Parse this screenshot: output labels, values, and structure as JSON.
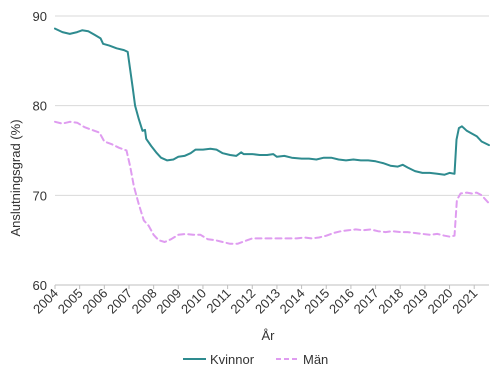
{
  "chart_data": {
    "type": "line",
    "xlabel": "År",
    "ylabel": "Anslutningsgrad (%)",
    "xlim": [
      2004,
      2021.6
    ],
    "ylim": [
      60,
      90
    ],
    "y_ticks": [
      60,
      70,
      80,
      90
    ],
    "x_ticks": [
      2004,
      2005,
      2006,
      2007,
      2008,
      2009,
      2010,
      2011,
      2012,
      2013,
      2014,
      2015,
      2016,
      2017,
      2018,
      2019,
      2020,
      2021
    ],
    "x_tick_labels": [
      "2004",
      "2005",
      "2006",
      "2007",
      "2008",
      "2009",
      "2010",
      "2011",
      "2012",
      "2013",
      "2014",
      "2015",
      "2016",
      "2017",
      "2018",
      "2019",
      "2020",
      "2021"
    ],
    "grid": "horizontal",
    "legend_position": "bottom",
    "series": [
      {
        "name": "Kvinnor",
        "color": "#2e8b8f",
        "style": "solid",
        "points": [
          [
            2004.0,
            88.6
          ],
          [
            2004.3,
            88.2
          ],
          [
            2004.6,
            88.0
          ],
          [
            2004.9,
            88.2
          ],
          [
            2005.1,
            88.4
          ],
          [
            2005.35,
            88.3
          ],
          [
            2005.6,
            87.9
          ],
          [
            2005.85,
            87.5
          ],
          [
            2005.95,
            86.9
          ],
          [
            2006.2,
            86.7
          ],
          [
            2006.5,
            86.4
          ],
          [
            2006.8,
            86.2
          ],
          [
            2006.95,
            86.0
          ],
          [
            2007.05,
            84.0
          ],
          [
            2007.15,
            82.0
          ],
          [
            2007.25,
            80.0
          ],
          [
            2007.4,
            78.5
          ],
          [
            2007.55,
            77.2
          ],
          [
            2007.65,
            77.3
          ],
          [
            2007.7,
            76.3
          ],
          [
            2007.9,
            75.5
          ],
          [
            2008.1,
            74.8
          ],
          [
            2008.3,
            74.2
          ],
          [
            2008.55,
            73.9
          ],
          [
            2008.8,
            74.0
          ],
          [
            2009.0,
            74.3
          ],
          [
            2009.25,
            74.4
          ],
          [
            2009.5,
            74.7
          ],
          [
            2009.7,
            75.1
          ],
          [
            2010.0,
            75.1
          ],
          [
            2010.3,
            75.2
          ],
          [
            2010.55,
            75.1
          ],
          [
            2010.8,
            74.7
          ],
          [
            2011.1,
            74.5
          ],
          [
            2011.35,
            74.4
          ],
          [
            2011.55,
            74.8
          ],
          [
            2011.65,
            74.6
          ],
          [
            2012.0,
            74.6
          ],
          [
            2012.3,
            74.5
          ],
          [
            2012.6,
            74.5
          ],
          [
            2012.85,
            74.6
          ],
          [
            2013.0,
            74.3
          ],
          [
            2013.3,
            74.4
          ],
          [
            2013.6,
            74.2
          ],
          [
            2014.0,
            74.1
          ],
          [
            2014.3,
            74.1
          ],
          [
            2014.6,
            74.0
          ],
          [
            2014.9,
            74.2
          ],
          [
            2015.2,
            74.2
          ],
          [
            2015.5,
            74.0
          ],
          [
            2015.8,
            73.9
          ],
          [
            2016.1,
            74.0
          ],
          [
            2016.4,
            73.9
          ],
          [
            2016.7,
            73.9
          ],
          [
            2017.0,
            73.8
          ],
          [
            2017.3,
            73.6
          ],
          [
            2017.6,
            73.3
          ],
          [
            2017.9,
            73.2
          ],
          [
            2018.1,
            73.4
          ],
          [
            2018.3,
            73.1
          ],
          [
            2018.6,
            72.7
          ],
          [
            2018.9,
            72.5
          ],
          [
            2019.2,
            72.5
          ],
          [
            2019.5,
            72.4
          ],
          [
            2019.8,
            72.3
          ],
          [
            2020.0,
            72.5
          ],
          [
            2020.2,
            72.4
          ],
          [
            2020.28,
            76.2
          ],
          [
            2020.38,
            77.5
          ],
          [
            2020.5,
            77.7
          ],
          [
            2020.7,
            77.2
          ],
          [
            2020.9,
            76.9
          ],
          [
            2021.1,
            76.6
          ],
          [
            2021.3,
            76.0
          ],
          [
            2021.6,
            75.6
          ]
        ]
      },
      {
        "name": "Män",
        "color": "#df9cf0",
        "style": "dashed",
        "points": [
          [
            2004.0,
            78.2
          ],
          [
            2004.3,
            78.0
          ],
          [
            2004.6,
            78.2
          ],
          [
            2004.9,
            78.1
          ],
          [
            2005.2,
            77.6
          ],
          [
            2005.5,
            77.3
          ],
          [
            2005.8,
            77.0
          ],
          [
            2006.0,
            76.0
          ],
          [
            2006.3,
            75.7
          ],
          [
            2006.6,
            75.3
          ],
          [
            2006.9,
            75.0
          ],
          [
            2007.05,
            73.2
          ],
          [
            2007.2,
            71.0
          ],
          [
            2007.4,
            69.0
          ],
          [
            2007.6,
            67.2
          ],
          [
            2007.8,
            66.6
          ],
          [
            2008.0,
            65.6
          ],
          [
            2008.2,
            65.0
          ],
          [
            2008.45,
            64.8
          ],
          [
            2008.7,
            65.1
          ],
          [
            2009.0,
            65.6
          ],
          [
            2009.3,
            65.7
          ],
          [
            2009.6,
            65.6
          ],
          [
            2009.9,
            65.6
          ],
          [
            2010.2,
            65.1
          ],
          [
            2010.5,
            65.0
          ],
          [
            2010.8,
            64.8
          ],
          [
            2011.1,
            64.6
          ],
          [
            2011.4,
            64.6
          ],
          [
            2011.7,
            64.9
          ],
          [
            2012.0,
            65.2
          ],
          [
            2012.3,
            65.2
          ],
          [
            2012.6,
            65.2
          ],
          [
            2012.9,
            65.2
          ],
          [
            2013.2,
            65.2
          ],
          [
            2013.5,
            65.2
          ],
          [
            2013.8,
            65.2
          ],
          [
            2014.1,
            65.3
          ],
          [
            2014.4,
            65.2
          ],
          [
            2014.7,
            65.3
          ],
          [
            2015.0,
            65.5
          ],
          [
            2015.3,
            65.8
          ],
          [
            2015.6,
            66.0
          ],
          [
            2015.9,
            66.1
          ],
          [
            2016.2,
            66.2
          ],
          [
            2016.5,
            66.1
          ],
          [
            2016.8,
            66.2
          ],
          [
            2017.1,
            66.0
          ],
          [
            2017.4,
            65.9
          ],
          [
            2017.7,
            66.0
          ],
          [
            2018.0,
            65.9
          ],
          [
            2018.3,
            65.9
          ],
          [
            2018.6,
            65.8
          ],
          [
            2018.9,
            65.7
          ],
          [
            2019.2,
            65.6
          ],
          [
            2019.5,
            65.7
          ],
          [
            2019.8,
            65.5
          ],
          [
            2020.0,
            65.4
          ],
          [
            2020.2,
            65.5
          ],
          [
            2020.3,
            69.5
          ],
          [
            2020.45,
            70.2
          ],
          [
            2020.7,
            70.3
          ],
          [
            2020.9,
            70.2
          ],
          [
            2021.1,
            70.3
          ],
          [
            2021.3,
            70.0
          ],
          [
            2021.6,
            69.1
          ]
        ]
      }
    ]
  }
}
